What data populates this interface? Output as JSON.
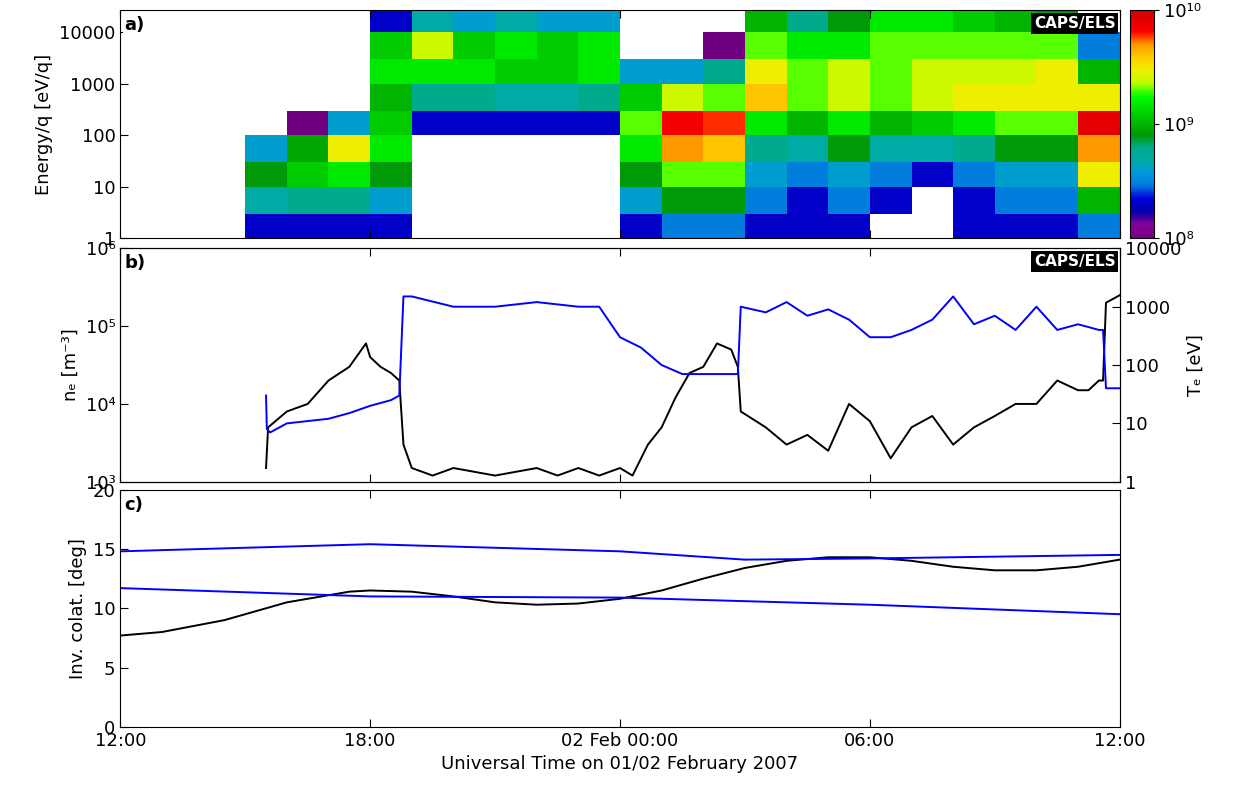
{
  "chart_data": [
    {
      "type": "heatmap",
      "y_label": "Energy/q [eV/q]",
      "annotations": [
        "a)",
        "CAPS/ELS"
      ],
      "log": "y",
      "tick_labels": "y",
      "xlim": [
        0,
        24
      ],
      "xticks": [
        {
          "value": 0,
          "label": "12:00"
        },
        {
          "value": 6,
          "label": "18:00"
        },
        {
          "value": 12,
          "label": "02 Feb 00:00"
        },
        {
          "value": 18,
          "label": "06:00"
        },
        {
          "value": 24,
          "label": "12:00"
        }
      ],
      "ylim": [
        1,
        27000
      ],
      "yticks": [
        1,
        10,
        100,
        1000,
        10000
      ],
      "x_edges": [
        0,
        1,
        2,
        3,
        4,
        5,
        6,
        7,
        8,
        9,
        10,
        11,
        12,
        13,
        14,
        15,
        16,
        17,
        18,
        19,
        20,
        21,
        22,
        23,
        24
      ],
      "y_edges": [
        1,
        3,
        10,
        30,
        100,
        300,
        1000,
        3000,
        10000,
        30000
      ],
      "cells": [
        [
          null,
          null,
          null,
          null,
          null,
          null,
          null,
          null,
          null
        ],
        [
          null,
          null,
          null,
          null,
          null,
          null,
          null,
          null,
          null
        ],
        [
          null,
          null,
          null,
          null,
          null,
          null,
          null,
          null,
          null
        ],
        [
          200000000.0,
          500000000.0,
          800000000.0,
          400000000.0,
          null,
          null,
          null,
          null,
          null
        ],
        [
          200000000.0,
          600000000.0,
          1200000000.0,
          900000000.0,
          100000000.0,
          null,
          null,
          null,
          null
        ],
        [
          200000000.0,
          600000000.0,
          1500000000.0,
          3000000000.0,
          400000000.0,
          null,
          null,
          null,
          null
        ],
        [
          200000000.0,
          400000000.0,
          800000000.0,
          1500000000.0,
          1200000000.0,
          1000000000.0,
          1500000000.0,
          1200000000.0,
          200000000.0
        ],
        [
          null,
          null,
          null,
          null,
          200000000.0,
          600000000.0,
          1500000000.0,
          2500000000.0,
          500000000.0
        ],
        [
          null,
          null,
          null,
          null,
          200000000.0,
          600000000.0,
          1500000000.0,
          1200000000.0,
          400000000.0
        ],
        [
          null,
          null,
          null,
          null,
          200000000.0,
          500000000.0,
          1200000000.0,
          1500000000.0,
          500000000.0
        ],
        [
          null,
          null,
          null,
          null,
          200000000.0,
          500000000.0,
          1200000000.0,
          1200000000.0,
          400000000.0
        ],
        [
          null,
          null,
          null,
          null,
          200000000.0,
          600000000.0,
          1500000000.0,
          1500000000.0,
          400000000.0
        ],
        [
          200000000.0,
          400000000.0,
          800000000.0,
          1500000000.0,
          2000000000.0,
          1200000000.0,
          400000000.0,
          null,
          null
        ],
        [
          300000000.0,
          800000000.0,
          2000000000.0,
          5000000000.0,
          7000000000.0,
          2500000000.0,
          400000000.0,
          null,
          null
        ],
        [
          300000000.0,
          800000000.0,
          2000000000.0,
          4000000000.0,
          6000000000.0,
          2000000000.0,
          600000000.0,
          100000000.0,
          null
        ],
        [
          200000000.0,
          300000000.0,
          400000000.0,
          600000000.0,
          1500000000.0,
          4000000000.0,
          3000000000.0,
          2000000000.0,
          1000000000.0
        ],
        [
          200000000.0,
          200000000.0,
          300000000.0,
          500000000.0,
          1000000000.0,
          2000000000.0,
          2000000000.0,
          1500000000.0,
          600000000.0
        ],
        [
          200000000.0,
          300000000.0,
          400000000.0,
          800000000.0,
          1500000000.0,
          2500000000.0,
          2500000000.0,
          1500000000.0,
          800000000.0
        ],
        [
          null,
          200000000.0,
          300000000.0,
          500000000.0,
          1000000000.0,
          2000000000.0,
          2000000000.0,
          2000000000.0,
          1500000000.0
        ],
        [
          null,
          null,
          200000000.0,
          500000000.0,
          1200000000.0,
          2500000000.0,
          2500000000.0,
          2000000000.0,
          1500000000.0
        ],
        [
          200000000.0,
          200000000.0,
          300000000.0,
          600000000.0,
          1500000000.0,
          3000000000.0,
          2500000000.0,
          2000000000.0,
          1200000000.0
        ],
        [
          200000000.0,
          300000000.0,
          400000000.0,
          800000000.0,
          2000000000.0,
          3000000000.0,
          2500000000.0,
          2000000000.0,
          1000000000.0
        ],
        [
          200000000.0,
          300000000.0,
          400000000.0,
          800000000.0,
          2000000000.0,
          3000000000.0,
          3000000000.0,
          2000000000.0,
          800000000.0
        ],
        [
          300000000.0,
          1000000000.0,
          3000000000.0,
          5000000000.0,
          8000000000.0,
          3000000000.0,
          1000000000.0,
          300000000.0,
          null
        ]
      ],
      "zlim": [
        100000000.0,
        10000000000.0
      ],
      "zticks": [
        {
          "value": 100000000.0,
          "label": "10⁸"
        },
        {
          "value": 1000000000.0,
          "label": "10⁹"
        },
        {
          "value": 10000000000.0,
          "label": "10¹⁰"
        }
      ]
    },
    {
      "type": "line",
      "y_label": "nₑ [m⁻³]",
      "y2_label": "Tₑ [eV]",
      "annotations": [
        "b)",
        "CAPS/ELS"
      ],
      "log": "y",
      "tick_labels": "y",
      "xlim": [
        0,
        24
      ],
      "xticks": [
        {
          "value": 0,
          "label": "12:00"
        },
        {
          "value": 6,
          "label": "18:00"
        },
        {
          "value": 12,
          "label": "02 Feb 00:00"
        },
        {
          "value": 18,
          "label": "06:00"
        },
        {
          "value": 24,
          "label": "12:00"
        }
      ],
      "ylim": [
        1000,
        1000000
      ],
      "yticks": [
        {
          "value": 1000,
          "label": "10³"
        },
        {
          "value": 10000,
          "label": "10⁴"
        },
        {
          "value": 100000,
          "label": "10⁵"
        },
        {
          "value": 1000000,
          "label": "10⁶"
        }
      ],
      "y2lim": [
        1,
        10000
      ],
      "y2ticks": [
        1,
        10,
        100,
        1000,
        10000
      ],
      "series": [
        {
          "color": "#000000",
          "axis": "y",
          "x": [
            3.5,
            3.55,
            4,
            4.5,
            5,
            5.5,
            5.9,
            6,
            6.25,
            6.5,
            6.7,
            6.8,
            7,
            7.5,
            8,
            9,
            10,
            10.5,
            11,
            11.5,
            12,
            12.3,
            12.67,
            13,
            13.33,
            13.67,
            14,
            14.33,
            14.67,
            14.83,
            14.9,
            15.5,
            16,
            16.5,
            17,
            17.5,
            18,
            18.5,
            19,
            19.5,
            20,
            20.5,
            21,
            21.5,
            22,
            22.5,
            23,
            23.25,
            23.5,
            23.6,
            23.67,
            24
          ],
          "values": [
            1500,
            5000,
            8000,
            10000,
            20000,
            30000,
            60000,
            40000,
            30000,
            25000,
            20000,
            3000,
            1500,
            1200,
            1500,
            1200,
            1500,
            1200,
            1500,
            1200,
            1500,
            1200,
            3000,
            5000,
            12000,
            25000,
            30000,
            60000,
            50000,
            30000,
            8000,
            5000,
            3000,
            4000,
            2500,
            10000,
            6000,
            2000,
            5000,
            7000,
            3000,
            5000,
            7000,
            10000,
            10000,
            20000,
            15000,
            15000,
            20000,
            20000,
            200000,
            250000
          ]
        },
        {
          "color": "#0000ff",
          "axis": "y2",
          "x": [
            3.5,
            3.52,
            3.6,
            4,
            5,
            5.5,
            6,
            6.5,
            6.7,
            6.8,
            7,
            8,
            9,
            10,
            11,
            11.5,
            12,
            12.5,
            13,
            13.5,
            14,
            14.5,
            14.83,
            14.9,
            15.5,
            16,
            16.5,
            17,
            17.5,
            18,
            18.5,
            19,
            19.5,
            20,
            20.5,
            21,
            21.5,
            22,
            22.5,
            23,
            23.5,
            23.6,
            23.67,
            24
          ],
          "values": [
            30,
            8,
            7,
            10,
            12,
            15,
            20,
            25,
            30,
            1500,
            1500,
            1000,
            1000,
            1200,
            1000,
            1000,
            300,
            200,
            100,
            70,
            70,
            70,
            70,
            1000,
            800,
            1200,
            700,
            900,
            600,
            300,
            300,
            400,
            600,
            1500,
            500,
            700,
            400,
            1000,
            400,
            500,
            400,
            400,
            40,
            40
          ]
        }
      ]
    },
    {
      "type": "line",
      "x_label": "Universal Time on 01/02 February 2007",
      "y_label": "Inv. colat. [deg]",
      "annotations": [
        "c)"
      ],
      "xlim": [
        0,
        24
      ],
      "xticks": [
        {
          "value": 0,
          "label": "12:00"
        },
        {
          "value": 6,
          "label": "18:00"
        },
        {
          "value": 12,
          "label": "02 Feb 00:00"
        },
        {
          "value": 18,
          "label": "06:00"
        },
        {
          "value": 24,
          "label": "12:00"
        }
      ],
      "ylim": [
        0,
        20
      ],
      "yticks": [
        0,
        5,
        10,
        15,
        20
      ],
      "series": [
        {
          "color": "#000000",
          "x": [
            0,
            1,
            2.5,
            4,
            5.5,
            6,
            7,
            8,
            9,
            10,
            11,
            12,
            13,
            14,
            15,
            16,
            17,
            18,
            19,
            20,
            21,
            22,
            23,
            24
          ],
          "values": [
            7.7,
            8.0,
            9.0,
            10.5,
            11.4,
            11.5,
            11.4,
            11.0,
            10.5,
            10.3,
            10.4,
            10.8,
            11.5,
            12.5,
            13.4,
            14.0,
            14.3,
            14.3,
            14.0,
            13.5,
            13.2,
            13.2,
            13.5,
            14.1
          ]
        },
        {
          "color": "#0000ff",
          "x": [
            0,
            6,
            12,
            15,
            18,
            24
          ],
          "values": [
            14.8,
            15.4,
            14.8,
            14.1,
            14.2,
            14.5
          ]
        },
        {
          "color": "#0000ff",
          "x": [
            0,
            6,
            12,
            18,
            24
          ],
          "values": [
            11.7,
            11.0,
            10.9,
            10.3,
            9.5
          ]
        }
      ]
    }
  ]
}
